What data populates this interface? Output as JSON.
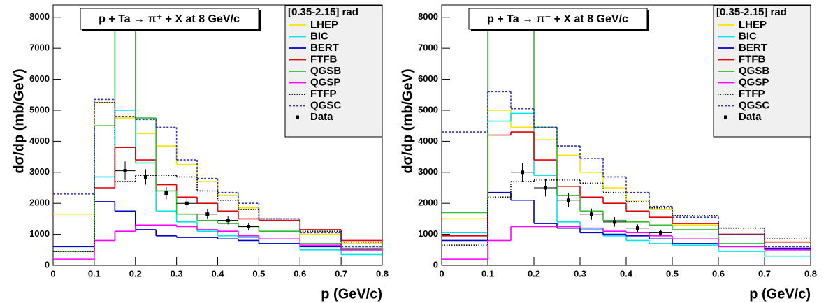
{
  "chart_data": [
    {
      "type": "histogram",
      "title": "p + Ta → π⁺ + X at 8 GeV/c",
      "legend_title": "[0.35-2.15] rad",
      "x_label": "p (GeV/c)",
      "y_label": "dσ/dp (mb/GeV)",
      "bins": [
        0,
        0.1,
        0.15,
        0.2,
        0.25,
        0.3,
        0.35,
        0.4,
        0.45,
        0.5,
        0.6,
        0.7,
        0.8
      ],
      "series": [
        {
          "name": "LHEP",
          "color": "#f5e600",
          "style": "solid",
          "values": [
            1650,
            5250,
            4750,
            4250,
            3850,
            3250,
            2700,
            2250,
            1850,
            1450,
            1000,
            700
          ]
        },
        {
          "name": "BIC",
          "color": "#00e5ee",
          "style": "solid",
          "values": [
            450,
            2850,
            5000,
            3300,
            1750,
            1400,
            1100,
            950,
            900,
            700,
            500,
            350
          ]
        },
        {
          "name": "BERT",
          "color": "#0000cc",
          "style": "solid",
          "values": [
            600,
            2050,
            1750,
            1150,
            950,
            900,
            900,
            850,
            800,
            700,
            600,
            500
          ]
        },
        {
          "name": "FTFB",
          "color": "#e00000",
          "style": "solid",
          "values": [
            450,
            2500,
            3800,
            3400,
            2600,
            2200,
            2000,
            1750,
            1500,
            1450,
            1150,
            800
          ]
        },
        {
          "name": "QGSB",
          "color": "#33bb33",
          "style": "solid",
          "values": [
            450,
            4500,
            7650,
            4750,
            2400,
            1650,
            1450,
            1350,
            1250,
            1100,
            700,
            550
          ]
        },
        {
          "name": "QGSP",
          "color": "#ff00ff",
          "style": "solid",
          "values": [
            200,
            800,
            1100,
            1300,
            1300,
            1250,
            1150,
            1100,
            950,
            850,
            650,
            500
          ]
        },
        {
          "name": "FTFP",
          "color": "#000000",
          "style": "dotted",
          "values": [
            450,
            5250,
            2700,
            2900,
            2900,
            2850,
            2400,
            2100,
            1800,
            1500,
            1100,
            750
          ]
        },
        {
          "name": "QGSC",
          "color": "#3333bb",
          "style": "dashed",
          "values": [
            2300,
            5350,
            4800,
            4700,
            4450,
            3400,
            2800,
            2350,
            2000,
            1500,
            1050,
            600
          ]
        }
      ],
      "data": {
        "name": "Data",
        "color": "#000000",
        "x": [
          0.175,
          0.225,
          0.275,
          0.325,
          0.375,
          0.425,
          0.475
        ],
        "values": [
          3050,
          2850,
          2330,
          2000,
          1650,
          1450,
          1250
        ],
        "errors": [
          300,
          250,
          200,
          180,
          150,
          130,
          120
        ]
      },
      "xlim": [
        0,
        0.8
      ],
      "xticks": [
        0,
        0.1,
        0.2,
        0.3,
        0.4,
        0.5,
        0.6,
        0.7,
        0.8
      ],
      "ylim": [
        0,
        8400
      ],
      "yticks": [
        0,
        1000,
        2000,
        3000,
        4000,
        5000,
        6000,
        7000,
        8000
      ]
    },
    {
      "type": "histogram",
      "title": "p + Ta → π⁻ + X at 8 GeV/c",
      "legend_title": "[0.35-2.15] rad",
      "x_label": "p (GeV/c)",
      "y_label": "dσ/dp (mb/GeV)",
      "bins": [
        0,
        0.1,
        0.15,
        0.2,
        0.25,
        0.3,
        0.35,
        0.4,
        0.45,
        0.5,
        0.6,
        0.7,
        0.8
      ],
      "series": [
        {
          "name": "LHEP",
          "color": "#f5e600",
          "style": "solid",
          "values": [
            1500,
            5000,
            4450,
            4050,
            3550,
            3000,
            2500,
            2100,
            1800,
            1300,
            1000,
            750
          ]
        },
        {
          "name": "BIC",
          "color": "#00e5ee",
          "style": "solid",
          "values": [
            1050,
            4650,
            4900,
            2900,
            1400,
            1150,
            950,
            800,
            700,
            650,
            450,
            300
          ]
        },
        {
          "name": "BERT",
          "color": "#0000cc",
          "style": "solid",
          "values": [
            800,
            2350,
            2100,
            1350,
            1200,
            1050,
            1000,
            950,
            850,
            700,
            600,
            550
          ]
        },
        {
          "name": "FTFB",
          "color": "#e00000",
          "style": "solid",
          "values": [
            950,
            4200,
            4300,
            3400,
            2550,
            2200,
            2000,
            1750,
            1550,
            1350,
            1000,
            750
          ]
        },
        {
          "name": "QGSB",
          "color": "#33bb33",
          "style": "solid",
          "values": [
            1700,
            7750,
            7950,
            4450,
            2250,
            1750,
            1450,
            1400,
            1300,
            1150,
            700,
            500
          ]
        },
        {
          "name": "QGSP",
          "color": "#ff00ff",
          "style": "solid",
          "values": [
            200,
            800,
            1250,
            1250,
            1250,
            1200,
            1100,
            1050,
            950,
            850,
            600,
            500
          ]
        },
        {
          "name": "FTFP",
          "color": "#000000",
          "style": "dotted",
          "values": [
            650,
            2200,
            2700,
            2750,
            2750,
            2650,
            2350,
            2050,
            1850,
            1600,
            1200,
            850
          ]
        },
        {
          "name": "QGSC",
          "color": "#3333bb",
          "style": "dashed",
          "values": [
            4300,
            5600,
            5050,
            4450,
            3850,
            3450,
            2850,
            2350,
            1900,
            1550,
            1000,
            600
          ]
        }
      ],
      "data": {
        "name": "Data",
        "color": "#000000",
        "x": [
          0.175,
          0.225,
          0.275,
          0.325,
          0.375,
          0.425,
          0.475
        ],
        "values": [
          3000,
          2500,
          2100,
          1650,
          1400,
          1200,
          1050
        ],
        "errors": [
          300,
          280,
          220,
          180,
          150,
          120,
          100
        ]
      },
      "xlim": [
        0,
        0.8
      ],
      "xticks": [
        0,
        0.1,
        0.2,
        0.3,
        0.4,
        0.5,
        0.6,
        0.7,
        0.8
      ],
      "ylim": [
        0,
        8400
      ],
      "yticks": [
        0,
        1000,
        2000,
        3000,
        4000,
        5000,
        6000,
        7000,
        8000
      ]
    }
  ]
}
